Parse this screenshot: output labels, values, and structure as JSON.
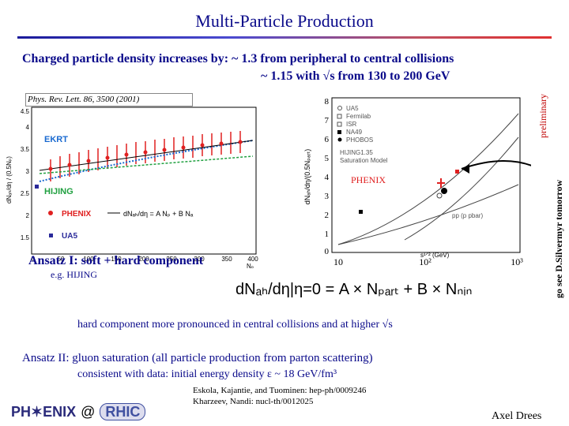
{
  "title": "Multi-Particle Production",
  "subtitle_line1": "Charged particle density increases by:   ~ 1.3 from peripheral to central collisions",
  "subtitle_line2": "~ 1.15 with √s from 130 to 200 GeV",
  "reference": "Phys. Rev. Lett. 86, 3500 (2001)",
  "left_plot": {
    "ylabel": "dNₐₕ/dη / (0.5Nₚ)",
    "xlabel": "Nₚ",
    "y_ticks": [
      "1.5",
      "2",
      "2.5",
      "3",
      "3.5",
      "4",
      "4.5"
    ],
    "x_ticks": [
      "0",
      "50",
      "100",
      "150",
      "200",
      "250",
      "300",
      "350",
      "400"
    ],
    "labels": {
      "ekrt": "EKRT",
      "hijing": "HIJING"
    },
    "legend": {
      "phenix": "PHENIX",
      "ua5": "UA5",
      "fit": "dNₐₕ/dη = A Nₚ + B Nₐ"
    }
  },
  "right_plot": {
    "ylabel": "dNₐₕ/dη/(0.5Nₚₐᵣₜ)",
    "xlabel": "s¹ᐟ² (GeV)",
    "y_ticks": [
      "0",
      "1",
      "2",
      "3",
      "4",
      "5",
      "6",
      "7",
      "8"
    ],
    "x_ticks": [
      "10",
      "10²",
      "10³"
    ],
    "legend": [
      "UA5",
      "Fermilab",
      "ISR",
      "NA49",
      "PHOBOS"
    ],
    "extra_labels": [
      "HIJING1.35",
      "Saturation Model",
      "pp (p pbar)"
    ],
    "phenix_label": "PHENIX"
  },
  "side_labels": {
    "preliminary": "preliminary",
    "see": "go see D.Silvermyr tomorrow"
  },
  "ansatz1": "Ansatz I: soft + hard component",
  "eg": "e.g.   HIJING",
  "formula": "dNₐₕ/dη|η=0 = A × Nₚₐᵣₜ + B × Nₙᵢₙ",
  "hard_text": "hard component more pronounced in central collisions and at higher √s",
  "ansatz2": "Ansatz II: gluon saturation  (all particle production from parton scattering)",
  "consistent": "consistent with data:  initial energy density   ε ~ 18 GeV/fm³",
  "refs": [
    "Eskola, Kajantie, and Tuominen:  hep-ph/0009246",
    "Kharzeev, Nandi:  nucl-th/0012025"
  ],
  "author": "Axel Drees",
  "logo": {
    "phenix": "PH✶ENIX",
    "at": "@",
    "rhic": "RHIC"
  },
  "colors": {
    "title": "#0a0a8a",
    "phenix_red": "#e02020",
    "ekrt_blue": "#1a6ad0",
    "hijing_green": "#20a040"
  }
}
